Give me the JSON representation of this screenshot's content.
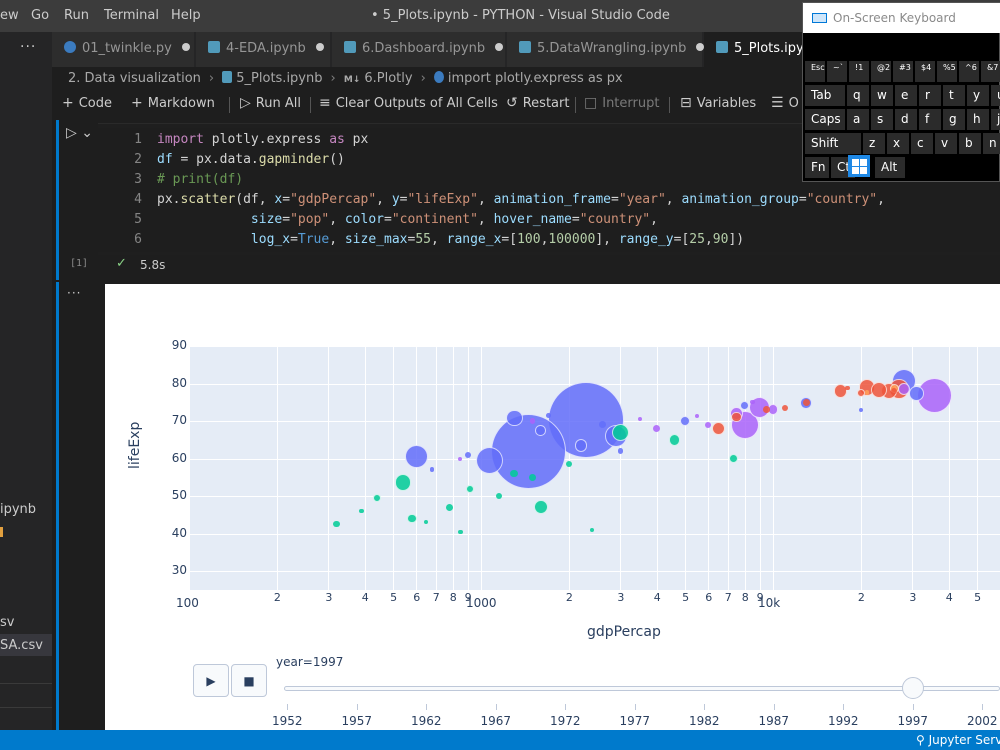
{
  "titlebar": {
    "menus": [
      "ew",
      "Go",
      "Run",
      "Terminal",
      "Help"
    ],
    "window_title": "• 5_Plots.ipynb - PYTHON - Visual Studio Code"
  },
  "tabs": [
    {
      "label": "01_twinkle.py",
      "icon": "python-file-icon",
      "modified": true,
      "active": false
    },
    {
      "label": "4-EDA.ipynb",
      "icon": "notebook-file-icon",
      "modified": true,
      "active": false
    },
    {
      "label": "6.Dashboard.ipynb",
      "icon": "notebook-file-icon",
      "modified": true,
      "active": false
    },
    {
      "label": "5.DataWrangling.ipynb",
      "icon": "notebook-file-icon",
      "modified": true,
      "active": false
    },
    {
      "label": "5_Plots.ipyn",
      "icon": "notebook-file-icon",
      "modified": false,
      "active": true
    }
  ],
  "breadcrumb": {
    "folder": "2. Data visualization",
    "file": "5_Plots.ipynb",
    "section": "6.Plotly",
    "section_badge": "M↓",
    "cell": "import plotly.express as px"
  },
  "toolbar": {
    "code": "Code",
    "markdown": "Markdown",
    "run_all": "Run All",
    "clear_outputs": "Clear Outputs of All Cells",
    "restart": "Restart",
    "interrupt": "Interrupt",
    "variables": "Variables",
    "more": "O"
  },
  "sidebar": {
    "fragments": [
      "ipynb",
      "sv",
      "SA.csv"
    ]
  },
  "cell": {
    "execution_count": "[1]",
    "duration": "5.8s",
    "line_numbers": [
      "1",
      "2",
      "3",
      "4",
      "5",
      "6"
    ]
  },
  "chart_data": {
    "type": "scatter",
    "title": "",
    "xlabel": "gdpPercap",
    "ylabel": "lifeExp",
    "x_scale": "log",
    "xlim": [
      100,
      100000
    ],
    "ylim": [
      25,
      90
    ],
    "y_ticks": [
      "90",
      "80",
      "70",
      "60",
      "50",
      "40",
      "30"
    ],
    "x_major_ticks": [
      "100",
      "1000",
      "10k"
    ],
    "x_minor_ticks": [
      "2",
      "3",
      "4",
      "5",
      "6",
      "7",
      "8",
      "9",
      "2",
      "3",
      "4",
      "5",
      "6",
      "7",
      "8",
      "9",
      "2",
      "3",
      "4",
      "5",
      "6"
    ],
    "continent_colors": {
      "Asia": "#636efa",
      "Europe": "#ef553b",
      "Africa": "#00cc96",
      "Americas": "#ab63fa",
      "Oceania": "#ffa15a"
    },
    "series": [
      {
        "name": "Asia",
        "color": "#636efa",
        "points": [
          [
            1458,
            61.8,
            1230
          ],
          [
            2290,
            70.4,
            1260
          ],
          [
            600,
            60.5,
            112
          ],
          [
            1072,
            59.6,
            160
          ],
          [
            2900,
            66.0,
            100
          ],
          [
            1300,
            70.8,
            60
          ],
          [
            28000,
            80.7,
            125
          ],
          [
            31000,
            77.4,
            46
          ],
          [
            13000,
            74.9,
            30
          ],
          [
            8000,
            74.1,
            20
          ],
          [
            5000,
            70.0,
            22
          ],
          [
            2200,
            63.5,
            34
          ],
          [
            1600,
            67.5,
            25
          ],
          [
            900,
            61.0,
            8
          ],
          [
            3000,
            62.0,
            6
          ],
          [
            20000,
            73.0,
            4
          ],
          [
            2600,
            69.0,
            10
          ],
          [
            1700,
            71.5,
            5
          ],
          [
            680,
            57.0,
            5
          ]
        ]
      },
      {
        "name": "Europe",
        "color": "#ef553b",
        "points": [
          [
            27000,
            78.5,
            82
          ],
          [
            21000,
            78.9,
            59
          ],
          [
            25000,
            78.0,
            58
          ],
          [
            23000,
            78.2,
            57
          ],
          [
            17000,
            78.0,
            39
          ],
          [
            6500,
            68.0,
            38
          ],
          [
            11000,
            73.5,
            10
          ],
          [
            9500,
            73.0,
            10
          ],
          [
            20000,
            77.5,
            16
          ],
          [
            26000,
            77.9,
            8
          ],
          [
            7500,
            71.0,
            22
          ],
          [
            13000,
            75.0,
            10
          ],
          [
            18000,
            78.8,
            5
          ]
        ]
      },
      {
        "name": "Africa",
        "color": "#00cc96",
        "points": [
          [
            540,
            53.6,
            60
          ],
          [
            3000,
            67.0,
            65
          ],
          [
            1600,
            47.0,
            42
          ],
          [
            440,
            49.5,
            15
          ],
          [
            320,
            42.5,
            8
          ],
          [
            780,
            47.0,
            11
          ],
          [
            580,
            44.0,
            20
          ],
          [
            920,
            52.0,
            14
          ],
          [
            1300,
            56.0,
            13
          ],
          [
            4600,
            65.0,
            30
          ],
          [
            2000,
            58.5,
            8
          ],
          [
            390,
            46.0,
            4
          ],
          [
            850,
            40.5,
            4
          ],
          [
            7300,
            60.0,
            18
          ],
          [
            1500,
            55.0,
            10
          ],
          [
            1150,
            50.0,
            8
          ],
          [
            2400,
            41.0,
            2
          ],
          [
            650,
            43.0,
            3
          ]
        ]
      },
      {
        "name": "Americas",
        "color": "#ab63fa",
        "points": [
          [
            35700,
            76.8,
            272
          ],
          [
            8000,
            69.0,
            168
          ],
          [
            9000,
            73.7,
            95
          ],
          [
            28000,
            78.6,
            31
          ],
          [
            7500,
            72.0,
            36
          ],
          [
            10000,
            73.0,
            25
          ],
          [
            4000,
            68.0,
            11
          ],
          [
            1500,
            70.0,
            6
          ],
          [
            5500,
            71.4,
            4
          ],
          [
            3500,
            70.5,
            3
          ],
          [
            850,
            60.0,
            2
          ],
          [
            6000,
            69.0,
            8
          ],
          [
            8500,
            75.0,
            4
          ]
        ]
      },
      {
        "name": "Oceania",
        "color": "#ffa15a",
        "points": [
          [
            26000,
            78.8,
            18
          ],
          [
            21000,
            77.6,
            4
          ]
        ]
      }
    ],
    "animation": {
      "current_label": "year=1997",
      "years": [
        "1952",
        "1957",
        "1962",
        "1967",
        "1972",
        "1977",
        "1982",
        "1987",
        "1992",
        "1997",
        "2002"
      ],
      "current_year_index": 9
    },
    "buttons": [
      "▶",
      "■"
    ]
  },
  "status": {
    "jupyter": "Jupyter Serv"
  },
  "keyboard": {
    "title": "On-Screen Keyboard",
    "rows": [
      [
        "Esc",
        "~`",
        "!1",
        "@2",
        "#3",
        "$4",
        "%5",
        "^6",
        "&7"
      ],
      [
        "Tab",
        "q",
        "w",
        "e",
        "r",
        "t",
        "y",
        "u"
      ],
      [
        "Caps",
        "a",
        "s",
        "d",
        "f",
        "g",
        "h",
        "j"
      ],
      [
        "Shift",
        "z",
        "x",
        "c",
        "v",
        "b",
        "n"
      ],
      [
        "Fn",
        "Ctrl",
        "Alt"
      ]
    ]
  }
}
